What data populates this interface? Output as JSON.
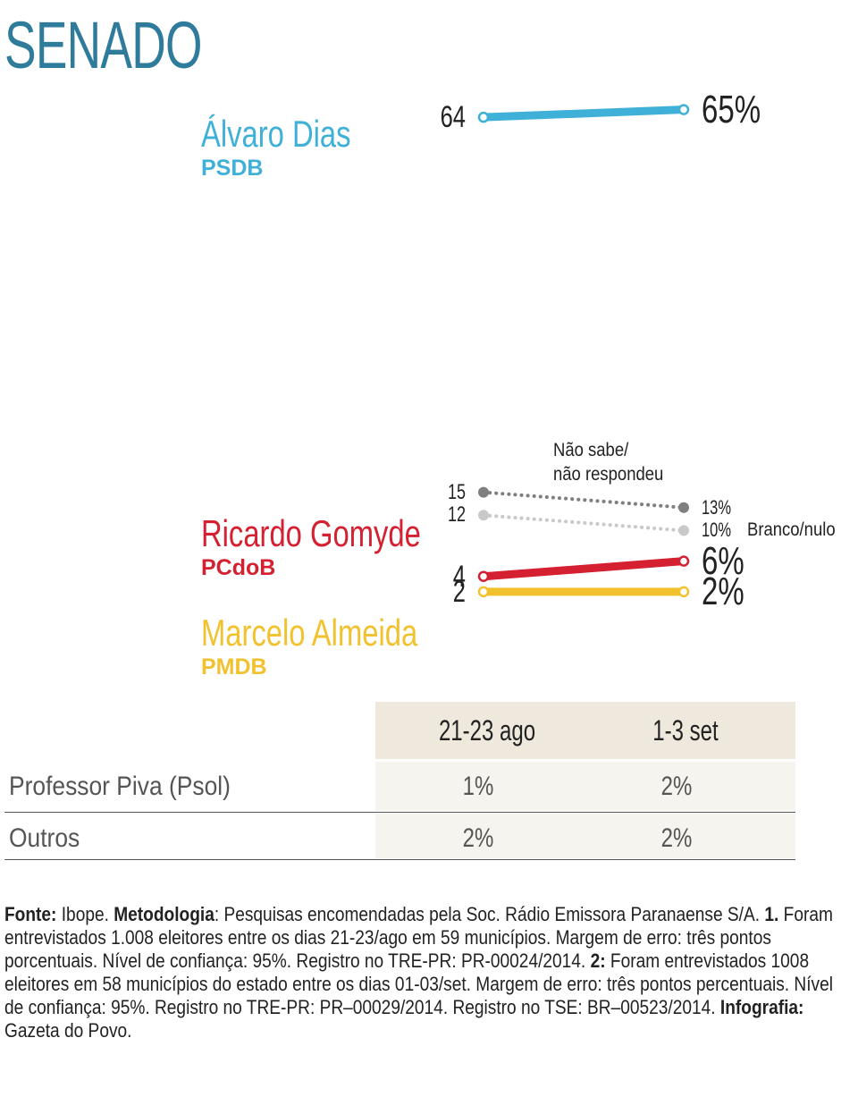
{
  "title": "SENADO",
  "chart_data": {
    "type": "slope",
    "categories": [
      "21-23 ago",
      "1-3 set"
    ],
    "series": [
      {
        "name": "Álvaro Dias",
        "party": "PSDB",
        "color": "#3fb0d8",
        "style": "solid",
        "values": [
          64,
          65
        ],
        "value_labels": [
          "64",
          "65%"
        ]
      },
      {
        "name": "Não sabe/\nnão respondeu",
        "color": "#7f7f7f",
        "style": "dotted",
        "values": [
          15,
          13
        ],
        "value_labels": [
          "15",
          "13%"
        ]
      },
      {
        "name": "Branco/nulo",
        "color": "#c9c9c9",
        "style": "dotted",
        "values": [
          12,
          10
        ],
        "value_labels": [
          "12",
          "10%"
        ]
      },
      {
        "name": "Ricardo Gomyde",
        "party": "PCdoB",
        "color": "#d42030",
        "style": "solid",
        "values": [
          4,
          6
        ],
        "value_labels": [
          "4",
          "6%"
        ]
      },
      {
        "name": "Marcelo Almeida",
        "party": "PMDB",
        "color": "#f2c12e",
        "style": "solid",
        "values": [
          2,
          2
        ],
        "value_labels": [
          "2",
          "2%"
        ]
      }
    ]
  },
  "table": {
    "rows": [
      [
        "Professor Piva (Psol)",
        "1%",
        "2%"
      ],
      [
        "Outros",
        "2%",
        "2%"
      ]
    ]
  },
  "footer": [
    {
      "text": "Fonte:",
      "bold": true
    },
    {
      "text": " Ibope. ",
      "bold": false
    },
    {
      "text": "Metodologia",
      "bold": true
    },
    {
      "text": ": Pesquisas encomendadas pela Soc. Rádio Emissora Paranaense S/A. ",
      "bold": false
    },
    {
      "text": "1.",
      "bold": true
    },
    {
      "text": " Foram entrevistados 1.008 eleitores entre os dias 21-23/ago em 59 municípios. Margem de erro: três pontos porcentuais. Nível de confiança: 95%. Registro no TRE-PR: PR-00024/2014. ",
      "bold": false
    },
    {
      "text": "2:",
      "bold": true
    },
    {
      "text": " Foram entrevistados 1008 eleitores em 58 municípios do estado entre os dias 01-03/set. Margem de erro: três pontos percentuais. Nível de confiança: 95%. Registro no TRE-PR: PR–00029/2014. Registro no TSE: BR–00523/2014. ",
      "bold": false
    },
    {
      "text": "Infografia:",
      "bold": true
    },
    {
      "text": " Gazeta do Povo.",
      "bold": false
    }
  ]
}
